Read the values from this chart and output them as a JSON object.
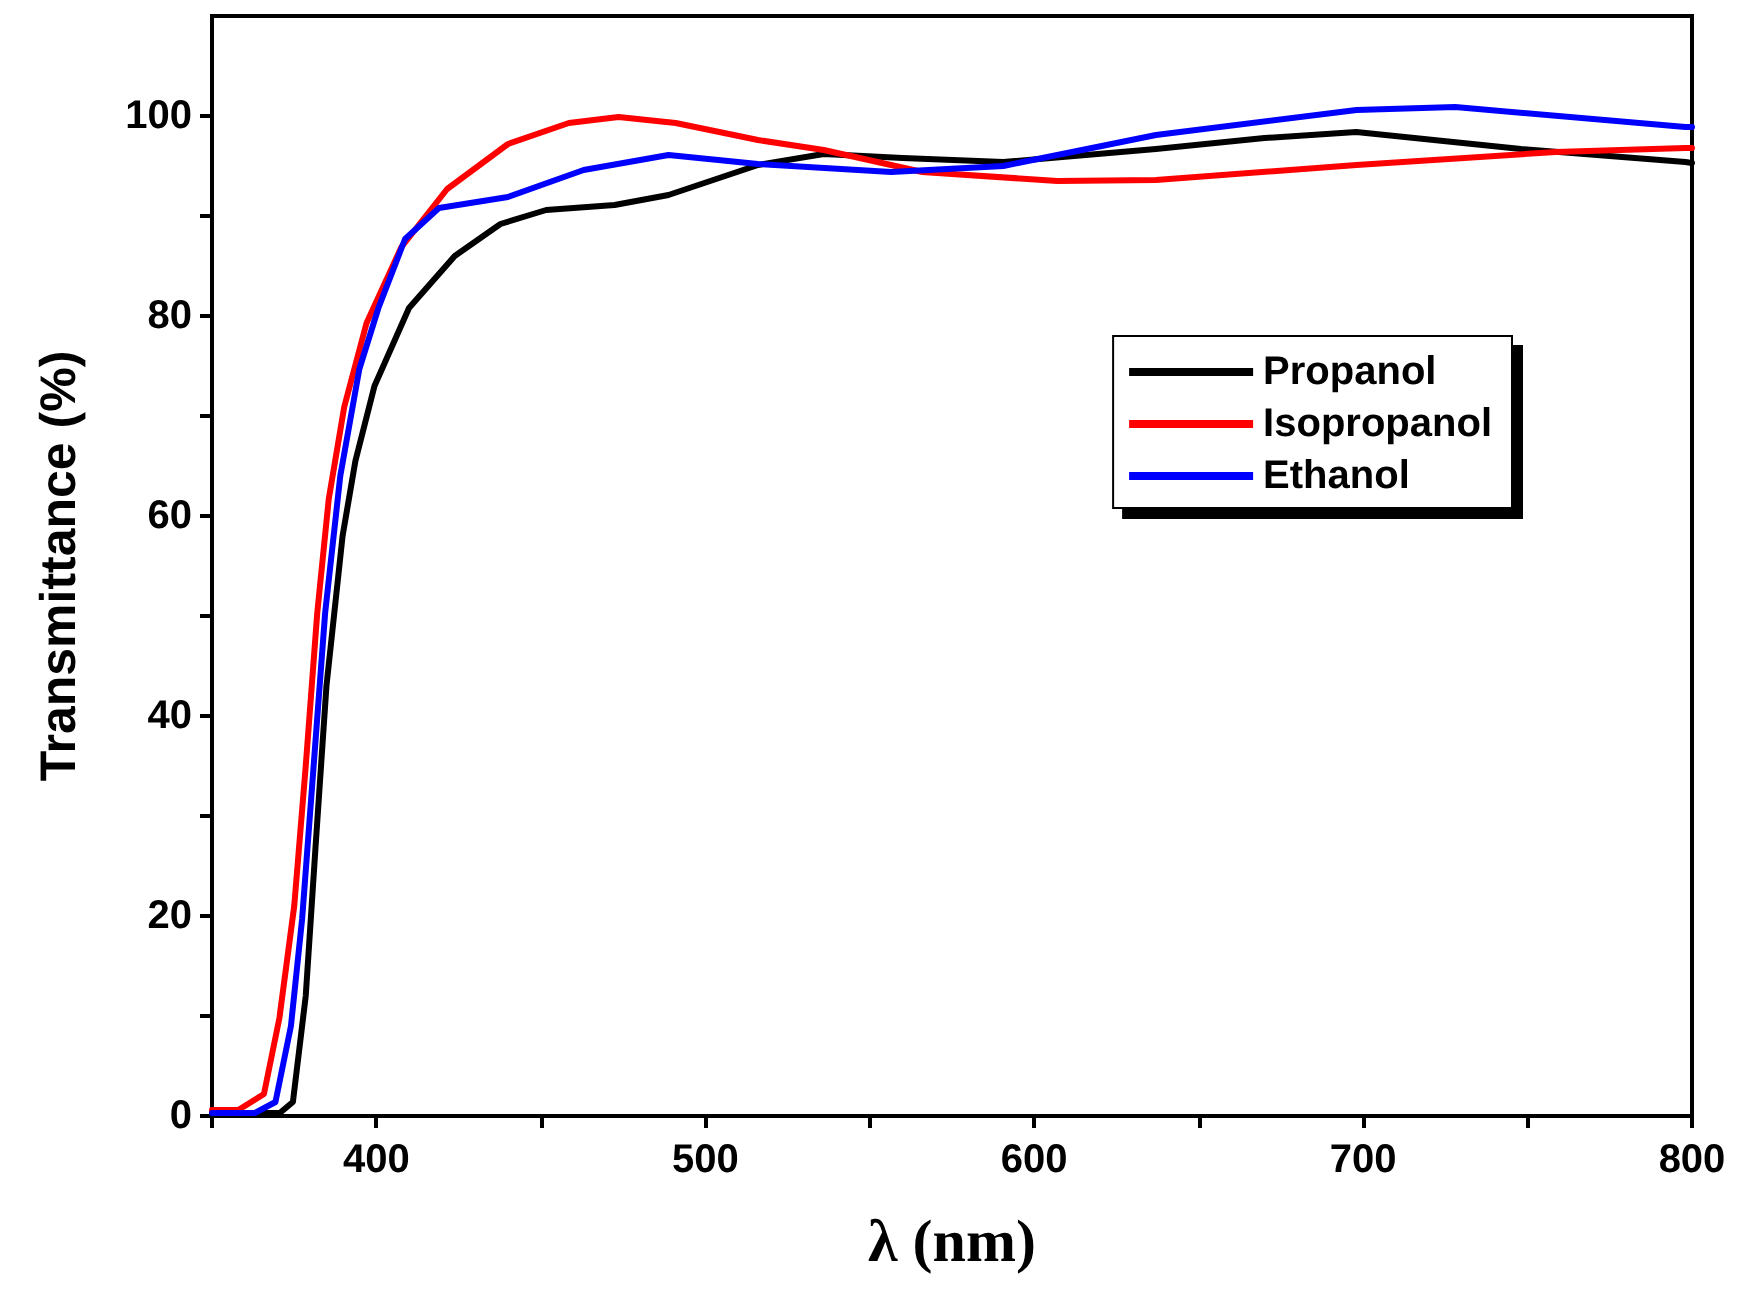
{
  "chart_data": {
    "type": "line",
    "xlabel": "λ (nm)",
    "ylabel": "Transmittance (%)",
    "xlim": [
      350,
      800
    ],
    "xticks": [
      {
        "value": 350,
        "label": null
      },
      400,
      {
        "value": 450,
        "label": null
      },
      500,
      {
        "value": 550,
        "label": null
      },
      600,
      {
        "value": 650,
        "label": null
      },
      700,
      {
        "value": 750,
        "label": null
      },
      800
    ],
    "ylim": [
      0,
      110
    ],
    "yticks": [
      0,
      {
        "value": 10,
        "label": null
      },
      20,
      {
        "value": 30,
        "label": null
      },
      40,
      {
        "value": 50,
        "label": null
      },
      60,
      {
        "value": 70,
        "label": null
      },
      80,
      {
        "value": 90,
        "label": null
      },
      100
    ],
    "grid": false,
    "legend": "right",
    "marker": "none",
    "line_style": "solid",
    "series": [
      {
        "name": "Propanol",
        "color": "#000000",
        "x": [
          350,
          360,
          370.6,
          374.6,
          378.5,
          381.5,
          384.8,
          389.7,
          393.6,
          399.4,
          409.9,
          423.8,
          437.7,
          451.6,
          472.4,
          488.8,
          516,
          536,
          560,
          590.6,
          637,
          670,
          697.9,
          748,
          798,
          800
        ],
        "values": [
          0.3,
          0.3,
          0.3,
          1.4,
          12,
          27,
          43,
          58,
          65.5,
          73,
          80.8,
          86,
          89.2,
          90.6,
          91.1,
          92.1,
          95.1,
          96.2,
          95.8,
          95.4,
          96.7,
          97.8,
          98.4,
          96.7,
          95.4,
          95.3
        ]
      },
      {
        "name": "Isopropanol",
        "color": "#ff0000",
        "x": [
          350,
          358,
          365.8,
          370.5,
          375,
          378.5,
          382,
          385.5,
          390.2,
          397,
          407.6,
          421.5,
          440,
          458.5,
          473.6,
          491,
          516,
          536,
          566,
          607,
          637,
          698,
          758.5,
          798,
          800
        ],
        "values": [
          0.6,
          0.6,
          2.2,
          9.8,
          21,
          35,
          50.3,
          61.7,
          70.9,
          79.3,
          86.9,
          92.7,
          97.2,
          99.3,
          99.9,
          99.3,
          97.6,
          96.6,
          94.4,
          93.5,
          93.6,
          95.1,
          96.4,
          96.8,
          96.8
        ]
      },
      {
        "name": "Ethanol",
        "color": "#0000ff",
        "x": [
          350,
          363,
          369.3,
          374,
          377.4,
          380.9,
          384.4,
          389,
          394.8,
          400.6,
          408.7,
          419,
          440,
          463,
          488.8,
          516,
          556.5,
          590.6,
          637,
          698,
          728,
          798,
          800
        ],
        "values": [
          0.3,
          0.3,
          1.4,
          9,
          19.7,
          35,
          50.3,
          64,
          74.7,
          80.8,
          87.7,
          90.8,
          91.9,
          94.6,
          96.1,
          95.2,
          94.4,
          95,
          98.1,
          100.6,
          100.9,
          98.9,
          98.9
        ]
      }
    ]
  }
}
